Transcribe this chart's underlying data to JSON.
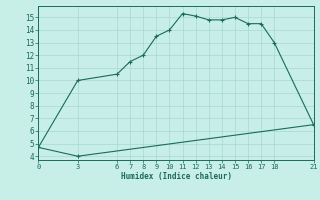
{
  "line1_x": [
    0,
    3,
    6,
    7,
    8,
    9,
    10,
    11,
    12,
    13,
    14,
    15,
    16,
    17,
    18,
    21
  ],
  "line1_y": [
    4.7,
    10.0,
    10.5,
    11.5,
    12.0,
    13.5,
    14.0,
    15.3,
    15.1,
    14.8,
    14.8,
    15.0,
    14.5,
    14.5,
    13.0,
    6.5
  ],
  "line2_x": [
    0,
    3,
    21
  ],
  "line2_y": [
    4.7,
    4.0,
    6.5
  ],
  "color": "#1a6b5a",
  "bg_color": "#c8eee8",
  "grid_color": "#a8d8d0",
  "xlabel": "Humidex (Indice chaleur)",
  "xticks": [
    0,
    3,
    6,
    7,
    8,
    9,
    10,
    11,
    12,
    13,
    14,
    15,
    16,
    17,
    18,
    21
  ],
  "yticks": [
    4,
    5,
    6,
    7,
    8,
    9,
    10,
    11,
    12,
    13,
    14,
    15
  ],
  "xlim": [
    0,
    21
  ],
  "ylim": [
    3.7,
    15.9
  ]
}
